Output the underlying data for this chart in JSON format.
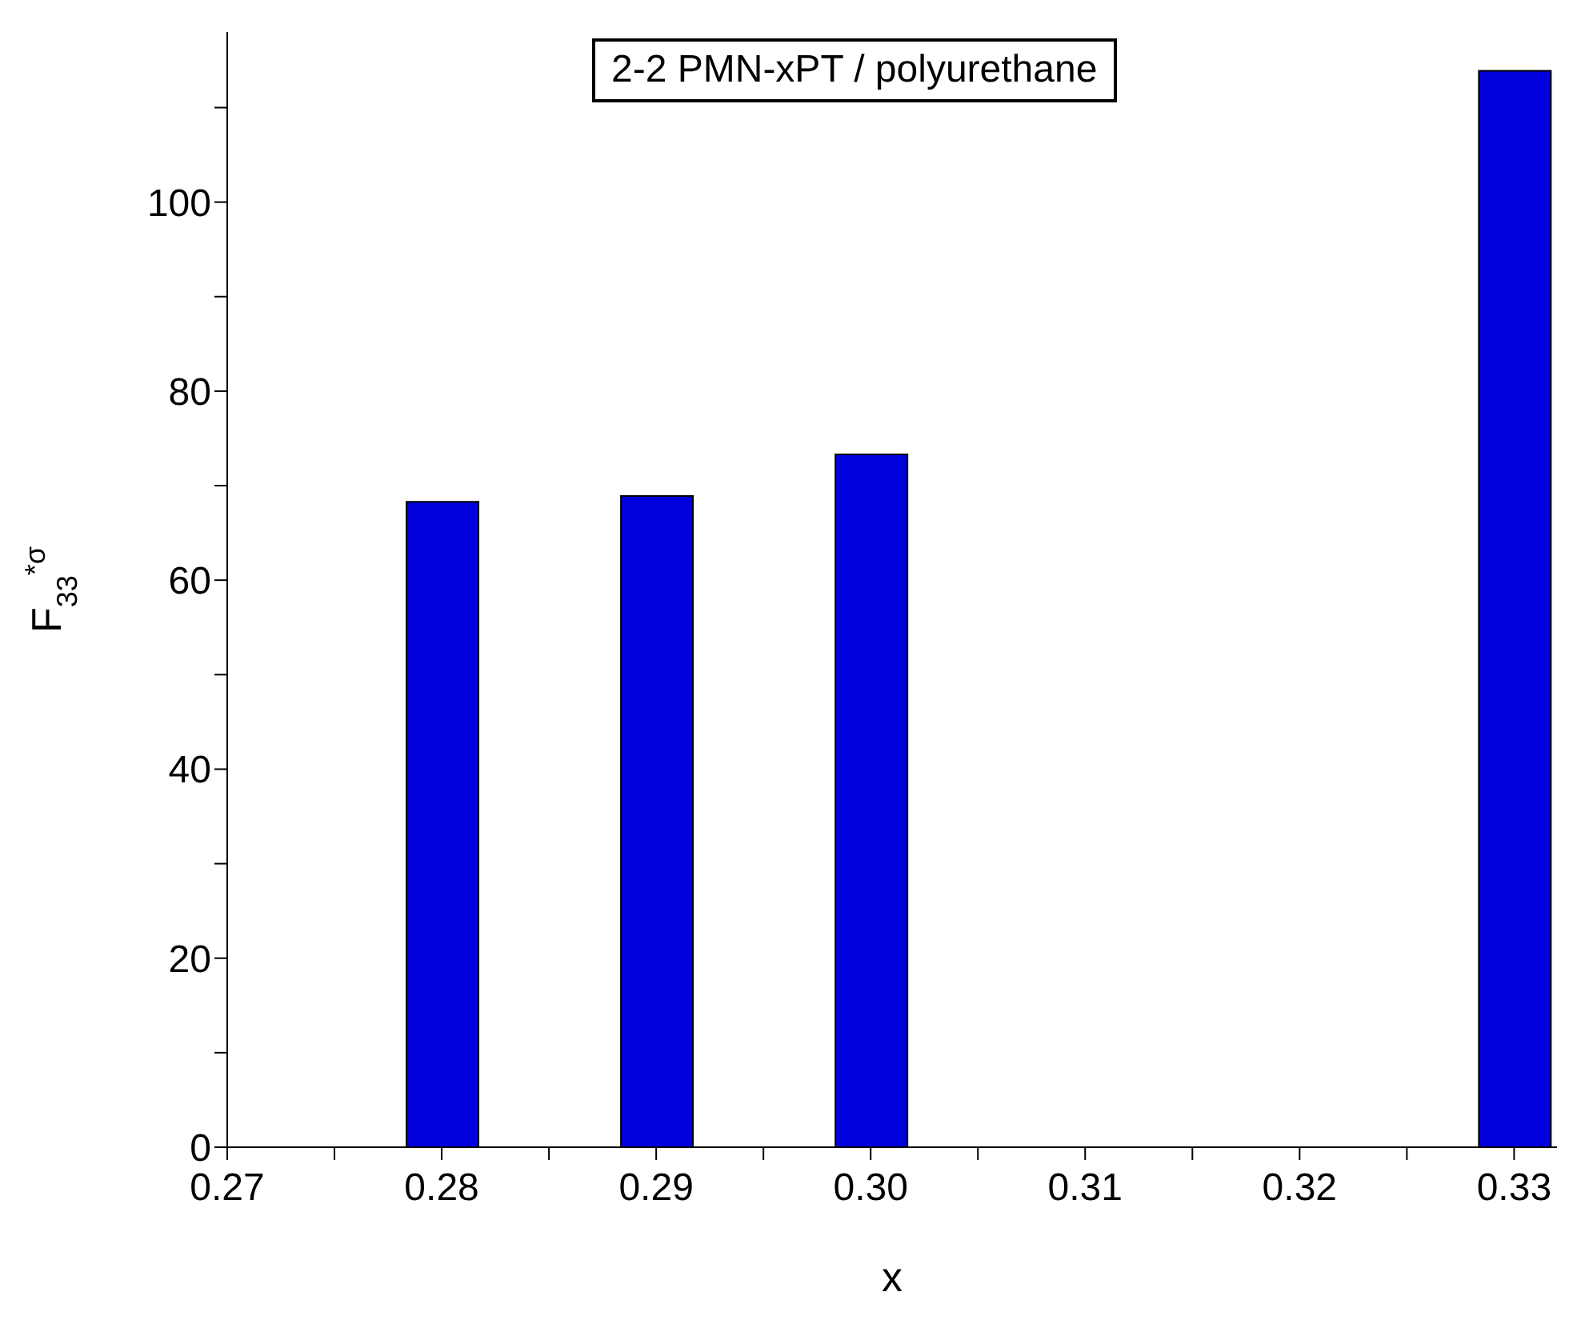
{
  "chart_data": {
    "type": "bar",
    "xlabel": "x",
    "ylabel": "F$_{33}$$^{*σ}$",
    "annotations": [
      "2-2 PMN-xPT / polyurethane"
    ],
    "x": [
      0.28,
      0.29,
      0.3,
      0.33
    ],
    "values": [
      68.3,
      68.9,
      73.3,
      113.9
    ],
    "color": "#0000dd",
    "xlim": [
      0.27,
      0.332
    ],
    "xticks": [
      0.27,
      {
        "value": 0.275,
        "label": null
      },
      0.28,
      {
        "value": 0.285,
        "label": null
      },
      0.29,
      {
        "value": 0.295,
        "label": null
      },
      {
        "value": 0.3,
        "label": "0.30"
      },
      {
        "value": 0.305,
        "label": null
      },
      0.31,
      {
        "value": 0.315,
        "label": null
      },
      0.32,
      {
        "value": 0.325,
        "label": null
      },
      0.33
    ],
    "ylim": [
      0,
      118
    ],
    "yticks": [
      0,
      {
        "value": 10,
        "label": null
      },
      20,
      {
        "value": 30,
        "label": null
      },
      40,
      {
        "value": 50,
        "label": null
      },
      60,
      {
        "value": 70,
        "label": null
      },
      80,
      {
        "value": 90,
        "label": null
      },
      100,
      {
        "value": 110,
        "label": null
      }
    ],
    "grid": false,
    "legend": false
  }
}
